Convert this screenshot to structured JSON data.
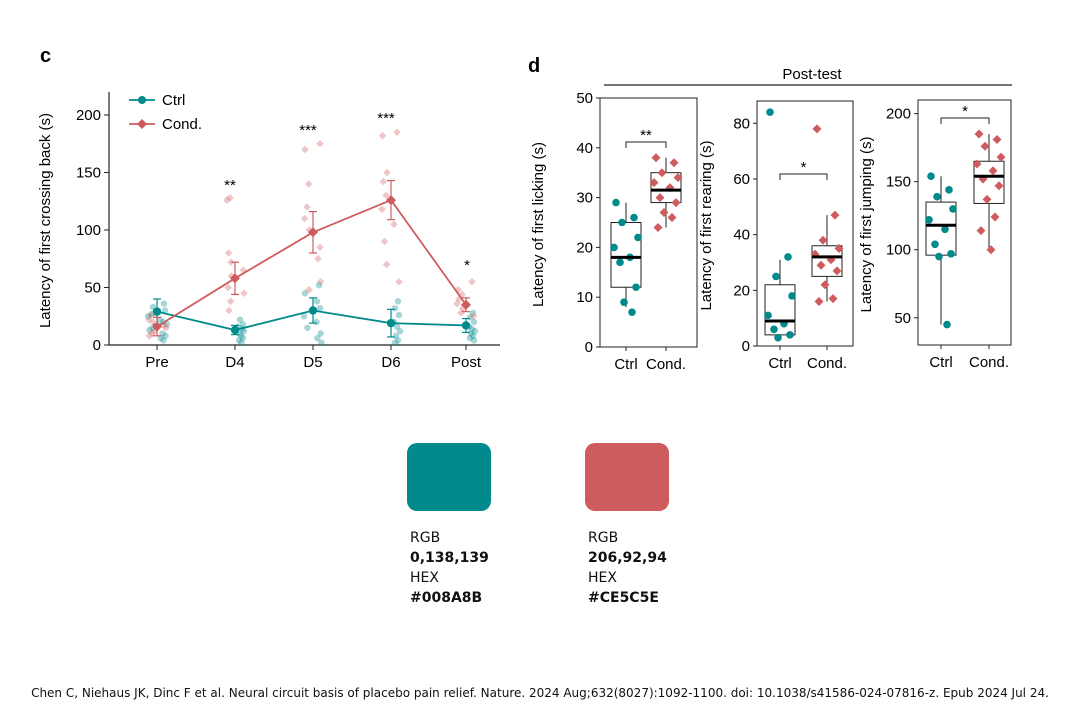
{
  "colors": {
    "ctrl": "#008A8B",
    "cond": "#CE5C5E"
  },
  "chart_data": [
    {
      "panel_label": "c",
      "type": "line",
      "ylabel": "Latency of first crossing back (s)",
      "categories": [
        "Pre",
        "D4",
        "D5",
        "D6",
        "Post"
      ],
      "ylim": [
        0,
        220
      ],
      "yticks": [
        0,
        50,
        100,
        150,
        200
      ],
      "legend": "top-left",
      "series": [
        {
          "name": "Ctrl",
          "color": "#008A8B",
          "marker": "circle",
          "values": [
            29,
            13,
            30,
            19,
            17
          ],
          "errors": [
            11,
            4,
            11,
            12,
            6
          ],
          "points": [
            [
              0,
              36,
              0.25
            ],
            [
              0,
              33,
              0.1
            ],
            [
              0,
              30,
              0.3
            ],
            [
              0,
              27,
              0.15
            ],
            [
              0,
              25,
              0.35
            ],
            [
              0,
              22,
              0.05
            ],
            [
              0,
              20,
              0.2
            ],
            [
              0,
              18,
              0.4
            ],
            [
              0,
              15,
              0.12
            ],
            [
              0,
              13,
              0.28
            ],
            [
              0,
              10,
              0.18
            ],
            [
              0,
              8,
              0.33
            ],
            [
              0,
              6,
              0.08
            ],
            [
              0,
              4,
              0.22
            ],
            [
              1,
              22,
              0.15
            ],
            [
              1,
              18,
              0.3
            ],
            [
              1,
              16,
              0.05
            ],
            [
              1,
              14,
              0.25
            ],
            [
              1,
              12,
              0.35
            ],
            [
              1,
              10,
              0.12
            ],
            [
              1,
              8,
              0.2
            ],
            [
              1,
              6,
              0.3
            ],
            [
              1,
              4,
              0.1
            ],
            [
              1,
              2,
              0.22
            ],
            [
              2,
              52,
              0.2
            ],
            [
              2,
              45,
              0.3
            ],
            [
              2,
              38,
              0.1
            ],
            [
              2,
              32,
              0.25
            ],
            [
              2,
              25,
              0.35
            ],
            [
              2,
              20,
              0.08
            ],
            [
              2,
              15,
              0.18
            ],
            [
              2,
              10,
              0.28
            ],
            [
              2,
              6,
              0.12
            ],
            [
              2,
              2,
              0.32
            ],
            [
              3,
              38,
              0.25
            ],
            [
              3,
              32,
              0.1
            ],
            [
              3,
              26,
              0.3
            ],
            [
              3,
              20,
              0.05
            ],
            [
              3,
              16,
              0.2
            ],
            [
              3,
              12,
              0.35
            ],
            [
              3,
              8,
              0.15
            ],
            [
              3,
              4,
              0.25
            ],
            [
              3,
              2,
              0.1
            ],
            [
              4,
              28,
              0.25
            ],
            [
              4,
              24,
              0.1
            ],
            [
              4,
              20,
              0.3
            ],
            [
              4,
              16,
              0.05
            ],
            [
              4,
              14,
              0.2
            ],
            [
              4,
              12,
              0.35
            ],
            [
              4,
              10,
              0.15
            ],
            [
              4,
              8,
              0.25
            ],
            [
              4,
              6,
              0.1
            ],
            [
              4,
              4,
              0.3
            ]
          ]
        },
        {
          "name": "Cond.",
          "color": "#CE5C5E",
          "marker": "diamond",
          "values": [
            16,
            58,
            98,
            126,
            35
          ],
          "errors": [
            8,
            14,
            18,
            17,
            6
          ],
          "points": [
            [
              0,
              26,
              0.2
            ],
            [
              0,
              22,
              0.3
            ],
            [
              0,
              20,
              0.1
            ],
            [
              0,
              17,
              0.25
            ],
            [
              0,
              15,
              0.35
            ],
            [
              0,
              12,
              0.05
            ],
            [
              0,
              10,
              0.15
            ],
            [
              0,
              8,
              0.28
            ],
            [
              1,
              128,
              0.15
            ],
            [
              1,
              126,
              0.3
            ],
            [
              1,
              80,
              0.22
            ],
            [
              1,
              72,
              0.1
            ],
            [
              1,
              65,
              0.32
            ],
            [
              1,
              60,
              0.08
            ],
            [
              1,
              50,
              0.25
            ],
            [
              1,
              45,
              0.35
            ],
            [
              1,
              38,
              0.12
            ],
            [
              1,
              30,
              0.2
            ],
            [
              2,
              175,
              0.25
            ],
            [
              2,
              170,
              0.3
            ],
            [
              2,
              140,
              0.12
            ],
            [
              2,
              120,
              0.2
            ],
            [
              2,
              110,
              0.32
            ],
            [
              2,
              100,
              0.08
            ],
            [
              2,
              85,
              0.25
            ],
            [
              2,
              75,
              0.15
            ],
            [
              2,
              55,
              0.28
            ],
            [
              2,
              48,
              0.1
            ],
            [
              3,
              185,
              0.2
            ],
            [
              3,
              182,
              0.32
            ],
            [
              3,
              150,
              0.1
            ],
            [
              3,
              142,
              0.28
            ],
            [
              3,
              130,
              0.15
            ],
            [
              3,
              118,
              0.35
            ],
            [
              3,
              105,
              0.05
            ],
            [
              3,
              90,
              0.22
            ],
            [
              3,
              70,
              0.12
            ],
            [
              3,
              55,
              0.3
            ],
            [
              4,
              55,
              0.2
            ],
            [
              4,
              48,
              0.3
            ],
            [
              4,
              44,
              0.1
            ],
            [
              4,
              40,
              0.25
            ],
            [
              4,
              36,
              0.35
            ],
            [
              4,
              32,
              0.05
            ],
            [
              4,
              28,
              0.15
            ],
            [
              4,
              25,
              0.28
            ]
          ]
        }
      ],
      "significance": [
        {
          "category": "D4",
          "label": "**"
        },
        {
          "category": "D5",
          "label": "***"
        },
        {
          "category": "D6",
          "label": "***"
        },
        {
          "category": "Post",
          "label": "*"
        }
      ]
    },
    {
      "panel_label": "d",
      "type": "box",
      "group_title": "Post-test",
      "ylabel": "Latency of first licking (s)",
      "categories": [
        "Ctrl",
        "Cond."
      ],
      "ylim": [
        0,
        50
      ],
      "yticks": [
        0,
        10,
        20,
        30,
        40,
        50
      ],
      "significance": "**",
      "boxes": [
        {
          "min": 8,
          "q1": 12,
          "median": 18,
          "q3": 25,
          "max": 29,
          "points": [
            29,
            26,
            25,
            22,
            20,
            18,
            17,
            12,
            9,
            7
          ]
        },
        {
          "min": 24,
          "q1": 29,
          "median": 31.5,
          "q3": 35,
          "max": 38,
          "points": [
            38,
            37,
            35,
            34,
            33,
            32,
            30,
            29,
            27,
            26,
            24
          ]
        }
      ]
    },
    {
      "type": "box",
      "ylabel": "Latency of first rearing (s)",
      "categories": [
        "Ctrl",
        "Cond."
      ],
      "ylim": [
        0,
        88
      ],
      "yticks": [
        0,
        20,
        40,
        60,
        80
      ],
      "significance": "*",
      "boxes": [
        {
          "min": 3,
          "q1": 4,
          "median": 9,
          "q3": 22,
          "max": 31,
          "points": [
            84,
            32,
            25,
            18,
            11,
            8,
            6,
            4,
            3
          ]
        },
        {
          "min": 16,
          "q1": 25,
          "median": 32,
          "q3": 36,
          "max": 47,
          "points": [
            78,
            47,
            38,
            35,
            33,
            31,
            29,
            27,
            22,
            17,
            16
          ]
        }
      ]
    },
    {
      "type": "box",
      "ylabel": "Latency of first jumping (s)",
      "categories": [
        "Ctrl",
        "Cond."
      ],
      "ylim": [
        30,
        210
      ],
      "yticks": [
        50,
        100,
        150,
        200
      ],
      "significance": "*",
      "boxes": [
        {
          "min": 45,
          "q1": 96,
          "median": 118,
          "q3": 135,
          "max": 154,
          "points": [
            154,
            144,
            139,
            130,
            122,
            115,
            104,
            97,
            95,
            45
          ]
        },
        {
          "min": 100,
          "q1": 134,
          "median": 154,
          "q3": 165,
          "max": 185,
          "points": [
            185,
            181,
            176,
            168,
            163,
            158,
            152,
            147,
            137,
            124,
            114,
            100
          ]
        }
      ]
    }
  ],
  "swatches": [
    {
      "rgb_label": "RGB",
      "rgb": "0,138,139",
      "hex_label": "HEX",
      "hex": "#008A8B"
    },
    {
      "rgb_label": "RGB",
      "rgb": "206,92,94",
      "hex_label": "HEX",
      "hex": "#CE5C5E"
    }
  ],
  "citation": "Chen C, Niehaus JK, Dinc F et al. Neural circuit basis of placebo pain relief. Nature. 2024 Aug;632(8027):1092-1100. doi: 10.1038/s41586-024-07816-z. Epub 2024 Jul 24."
}
